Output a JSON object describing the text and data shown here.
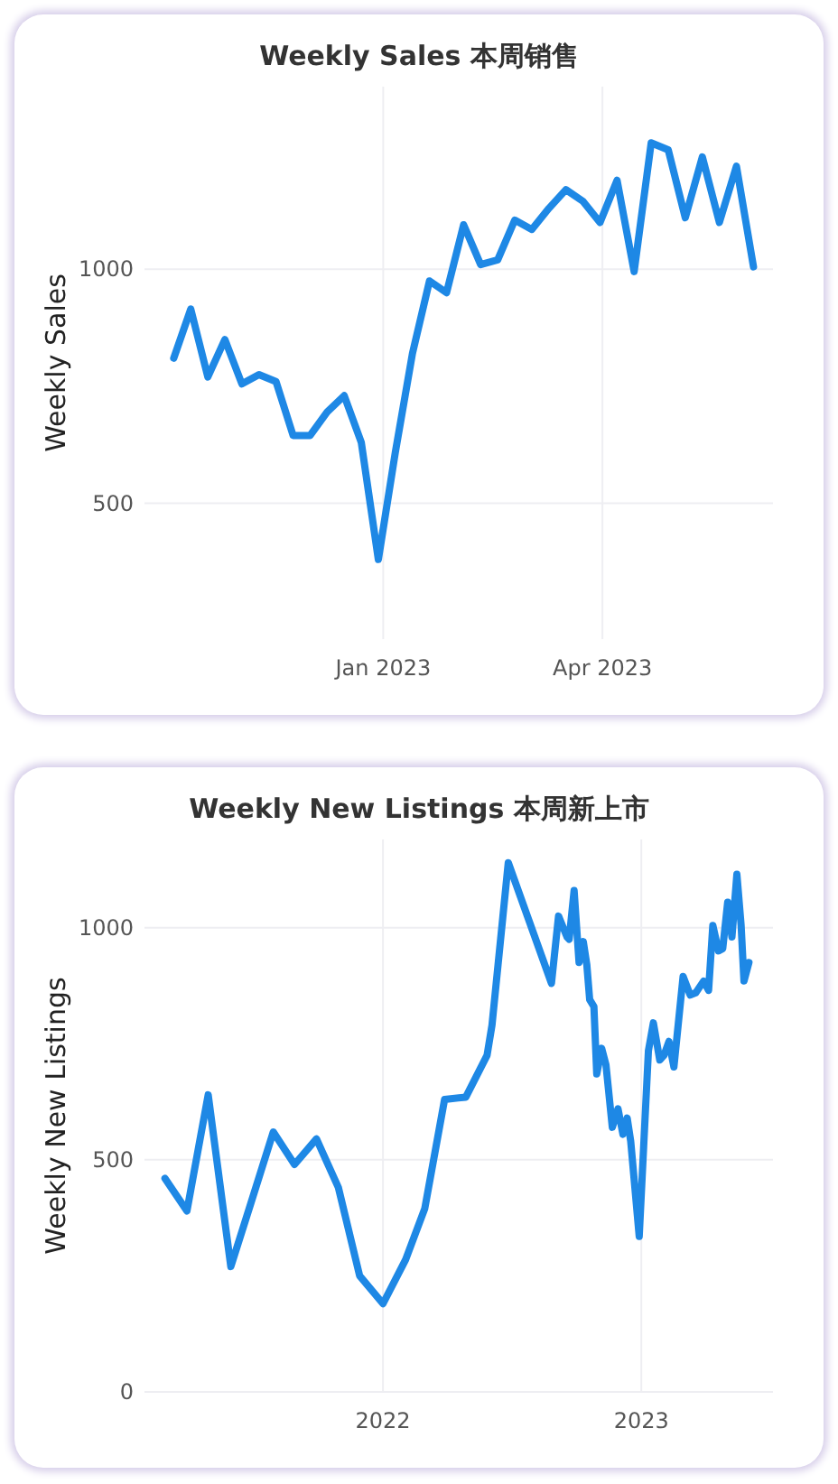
{
  "chart_data": [
    {
      "type": "line",
      "title": "Weekly Sales 本周销售",
      "ylabel": "Weekly Sales",
      "grid": true,
      "x": [
        "2022-10-07",
        "2022-10-14",
        "2022-10-21",
        "2022-10-28",
        "2022-11-04",
        "2022-11-11",
        "2022-11-18",
        "2022-11-25",
        "2022-12-02",
        "2022-12-09",
        "2022-12-16",
        "2022-12-23",
        "2022-12-30",
        "2023-01-06",
        "2023-01-13",
        "2023-01-20",
        "2023-01-27",
        "2023-02-03",
        "2023-02-10",
        "2023-02-17",
        "2023-02-24",
        "2023-03-03",
        "2023-03-10",
        "2023-03-17",
        "2023-03-24",
        "2023-03-31",
        "2023-04-07",
        "2023-04-14",
        "2023-04-21",
        "2023-04-28",
        "2023-05-05",
        "2023-05-12",
        "2023-05-19",
        "2023-05-26",
        "2023-06-02"
      ],
      "series": [
        {
          "color": "#1e88e5",
          "values": [
            810,
            915,
            770,
            850,
            755,
            775,
            760,
            645,
            645,
            695,
            730,
            630,
            380,
            610,
            820,
            975,
            950,
            1095,
            1010,
            1020,
            1105,
            1085,
            1130,
            1170,
            1145,
            1100,
            1190,
            995,
            1270,
            1255,
            1110,
            1240,
            1100,
            1220,
            1005
          ]
        }
      ],
      "xlim": [
        "2022-09-25",
        "2023-06-10"
      ],
      "ylim": [
        210,
        1390
      ],
      "xticks": [
        {
          "value": "2023-01-01",
          "label": "Jan 2023"
        },
        {
          "value": "2023-04-01",
          "label": "Apr 2023"
        }
      ],
      "yticks": [
        500,
        1000
      ]
    },
    {
      "type": "line",
      "title": "Weekly New Listings  本周新上市",
      "ylabel": "Weekly New Listings",
      "grid": true,
      "x": [
        "2021-02-27",
        "2021-03-30",
        "2021-04-29",
        "2021-05-31",
        "2021-06-28",
        "2021-07-30",
        "2021-08-29",
        "2021-09-29",
        "2021-10-30",
        "2021-11-29",
        "2022-01-01",
        "2022-02-02",
        "2022-03-01",
        "2022-03-29",
        "2022-04-28",
        "2022-05-28",
        "2022-06-04",
        "2022-06-27",
        "2022-08-27",
        "2022-09-06",
        "2022-09-18",
        "2022-09-21",
        "2022-09-28",
        "2022-10-05",
        "2022-10-11",
        "2022-10-16",
        "2022-10-20",
        "2022-10-26",
        "2022-10-30",
        "2022-11-06",
        "2022-11-12",
        "2022-11-21",
        "2022-11-29",
        "2022-12-06",
        "2022-12-12",
        "2022-12-17",
        "2022-12-29",
        "2023-01-11",
        "2023-01-18",
        "2023-01-27",
        "2023-02-02",
        "2023-02-09",
        "2023-02-16",
        "2023-03-01",
        "2023-03-11",
        "2023-03-19",
        "2023-03-30",
        "2023-04-06",
        "2023-04-12",
        "2023-04-20",
        "2023-04-26",
        "2023-05-03",
        "2023-05-09",
        "2023-05-16",
        "2023-05-22",
        "2023-05-26",
        "2023-06-02"
      ],
      "series": [
        {
          "color": "#1e88e5",
          "values": [
            460,
            390,
            640,
            270,
            405,
            560,
            490,
            545,
            440,
            250,
            190,
            285,
            395,
            630,
            635,
            725,
            790,
            1140,
            880,
            1025,
            980,
            975,
            1080,
            925,
            970,
            920,
            845,
            830,
            685,
            740,
            705,
            570,
            610,
            555,
            590,
            540,
            335,
            735,
            795,
            715,
            725,
            755,
            700,
            895,
            855,
            860,
            885,
            865,
            1005,
            950,
            955,
            1055,
            980,
            1115,
            1005,
            885,
            925
          ]
        }
      ],
      "xlim": [
        "2021-01-29",
        "2023-07-06"
      ],
      "ylim": [
        0,
        1190
      ],
      "xticks": [
        {
          "value": "2022-01-01",
          "label": "2022"
        },
        {
          "value": "2023-01-01",
          "label": "2023"
        }
      ],
      "yticks": [
        0,
        500,
        1000
      ]
    }
  ]
}
